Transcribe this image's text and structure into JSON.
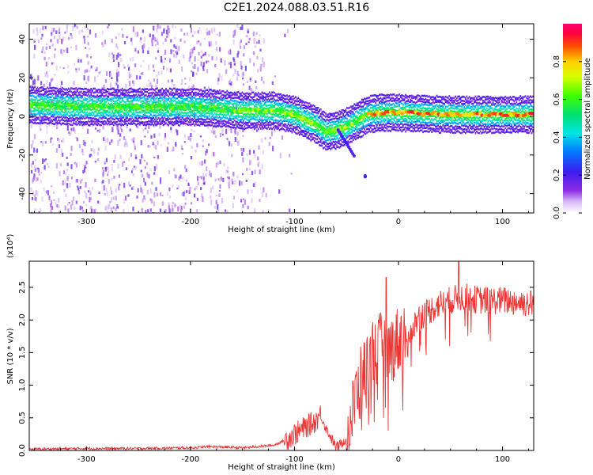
{
  "title": "C2E1.2024.088.03.51.R16",
  "chart_data": [
    {
      "type": "heatmap",
      "xlabel": "Height of straight line (km)",
      "ylabel": "Frequency (Hz)",
      "xlim": [
        -355,
        130
      ],
      "ylim": [
        -50,
        48
      ],
      "xticks": [
        -300,
        -200,
        -100,
        0,
        100
      ],
      "yticks": [
        -40,
        -20,
        0,
        20,
        40
      ],
      "colorbar": {
        "label": "Normalized spectral amplitude",
        "range": [
          0,
          1
        ],
        "ticks": [
          "0.0",
          "0.2",
          "0.4",
          "0.6",
          "0.8"
        ],
        "colormap": "rainbow (white-violet-blue-cyan-green-yellow-red-magenta)"
      },
      "ridge": {
        "description": "dominant frequency line vs height",
        "x": [
          -355,
          -300,
          -250,
          -200,
          -170,
          -150,
          -120,
          -100,
          -80,
          -70,
          -60,
          -50,
          -40,
          -30,
          -20,
          -10,
          0,
          50,
          100,
          130
        ],
        "y": [
          6,
          5,
          5,
          5,
          4,
          3,
          3,
          1,
          -4,
          -8,
          -7,
          -5,
          -2,
          1,
          2,
          2,
          2,
          1,
          1,
          1
        ]
      },
      "grid": false
    },
    {
      "type": "line",
      "xlabel": "Height of straight line (km)",
      "ylabel": "SNR (10 * v/v)",
      "yunit": "(x10⁴)",
      "xlim": [
        -355,
        130
      ],
      "ylim": [
        0,
        2.9
      ],
      "xticks": [
        -300,
        -200,
        -100,
        0,
        100
      ],
      "yticks": [
        "0.0",
        "0.5",
        "1.0",
        "1.5",
        "2.0",
        "2.5"
      ],
      "series": [
        {
          "color": "#ee3333",
          "x": [
            -355,
            -300,
            -250,
            -200,
            -180,
            -150,
            -120,
            -110,
            -100,
            -90,
            -80,
            -75,
            -70,
            -60,
            -55,
            -50,
            -45,
            -40,
            -35,
            -30,
            -25,
            -20,
            -15,
            -10,
            -5,
            0,
            10,
            20,
            30,
            40,
            50,
            60,
            80,
            100,
            130
          ],
          "y": [
            0.02,
            0.03,
            0.03,
            0.04,
            0.06,
            0.04,
            0.08,
            0.15,
            0.25,
            0.35,
            0.45,
            0.55,
            0.35,
            0.05,
            0.1,
            0.2,
            0.5,
            0.9,
            1.1,
            1.3,
            1.5,
            1.55,
            1.6,
            1.5,
            1.6,
            1.7,
            1.8,
            2.05,
            2.15,
            2.25,
            2.3,
            2.35,
            2.3,
            2.3,
            2.25
          ]
        }
      ],
      "grid": false
    }
  ]
}
